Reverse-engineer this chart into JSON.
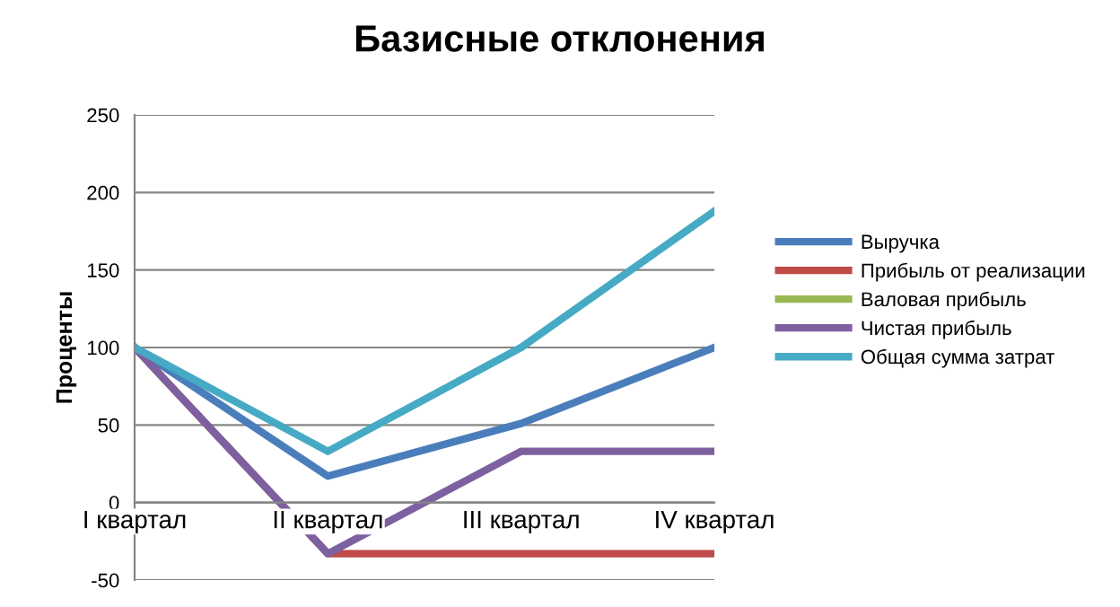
{
  "chart_data": {
    "type": "line",
    "title": "Базисные отклонения",
    "ylabel": "Проценты",
    "categories": [
      "I квартал",
      "II квартал",
      "III квартал",
      "IV квартал"
    ],
    "series": [
      {
        "name": "Выручка",
        "color": "#4a7ebb",
        "values": [
          100,
          17,
          51,
          100
        ]
      },
      {
        "name": "Прибыль от реализации",
        "color": "#be4b48",
        "values": [
          100,
          -33,
          -33,
          -33
        ]
      },
      {
        "name": "Валовая прибыль",
        "color": "#98b954",
        "values": [
          null,
          null,
          null,
          null
        ]
      },
      {
        "name": "Чистая прибыль",
        "color": "#7d60a0",
        "values": [
          100,
          -33,
          33,
          33
        ]
      },
      {
        "name": "Общая сумма затрат",
        "color": "#46aac5",
        "values": [
          100,
          33,
          100,
          188
        ]
      }
    ],
    "ylim": [
      -50,
      250
    ],
    "yticks": [
      -50,
      0,
      50,
      100,
      150,
      200,
      250
    ],
    "grid": "y",
    "legend": "right",
    "marker": "none",
    "line_style": "solid"
  }
}
